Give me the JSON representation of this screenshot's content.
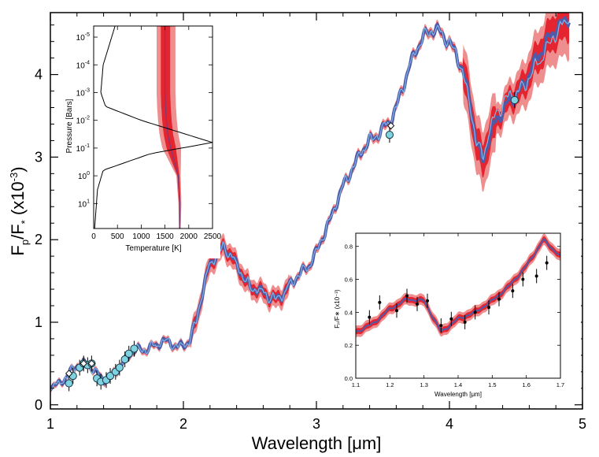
{
  "chart_data": [
    {
      "id": "main",
      "type": "line",
      "title": "",
      "xlabel": "Wavelength [μm]",
      "ylabel_main": "F",
      "ylabel_sub1": "p",
      "ylabel_mid": "/F",
      "ylabel_sub2": "*",
      "ylabel_units": " (x10",
      "ylabel_exp": "-3",
      "ylabel_close": ")",
      "xlim": [
        1,
        5
      ],
      "ylim": [
        -0.05,
        4.75
      ],
      "xticks": [
        1,
        2,
        3,
        4,
        5
      ],
      "yticks": [
        0,
        1,
        2,
        3,
        4
      ],
      "series": [
        {
          "name": "Model spectrum (median)",
          "x": [
            1.0,
            1.05,
            1.1,
            1.15,
            1.2,
            1.25,
            1.3,
            1.35,
            1.4,
            1.45,
            1.5,
            1.55,
            1.6,
            1.65,
            1.7,
            1.75,
            1.8,
            1.85,
            1.9,
            1.95,
            2.0,
            2.05,
            2.1,
            2.15,
            2.2,
            2.25,
            2.3,
            2.35,
            2.4,
            2.45,
            2.5,
            2.55,
            2.6,
            2.65,
            2.7,
            2.75,
            2.8,
            2.85,
            2.9,
            2.95,
            3.0,
            3.05,
            3.1,
            3.15,
            3.2,
            3.25,
            3.3,
            3.35,
            3.4,
            3.45,
            3.5,
            3.55,
            3.6,
            3.65,
            3.7,
            3.75,
            3.8,
            3.85,
            3.9,
            3.95,
            4.0,
            4.05,
            4.1,
            4.15,
            4.2,
            4.25,
            4.3,
            4.35,
            4.4,
            4.45,
            4.5,
            4.55,
            4.6,
            4.65,
            4.7,
            4.75,
            4.8,
            4.85,
            4.9
          ],
          "y": [
            0.22,
            0.24,
            0.3,
            0.4,
            0.48,
            0.5,
            0.47,
            0.38,
            0.3,
            0.34,
            0.42,
            0.52,
            0.62,
            0.68,
            0.65,
            0.7,
            0.72,
            0.78,
            0.75,
            0.7,
            0.72,
            0.78,
            1.05,
            1.4,
            1.72,
            1.8,
            1.92,
            1.82,
            1.7,
            1.55,
            1.42,
            1.4,
            1.36,
            1.3,
            1.28,
            1.34,
            1.45,
            1.55,
            1.62,
            1.7,
            1.85,
            2.05,
            2.22,
            2.45,
            2.65,
            2.8,
            2.95,
            3.1,
            3.2,
            3.25,
            3.35,
            3.42,
            3.6,
            3.85,
            4.1,
            4.3,
            4.45,
            4.52,
            4.55,
            4.48,
            4.38,
            4.25,
            4.05,
            3.7,
            3.2,
            2.95,
            3.25,
            3.45,
            3.55,
            3.7,
            3.75,
            3.85,
            4.0,
            4.18,
            4.3,
            4.45,
            4.55,
            4.62,
            4.7
          ]
        },
        {
          "name": "Observed eclipse depths",
          "x": [
            1.14,
            1.17,
            1.22,
            1.25,
            1.28,
            1.31,
            1.35,
            1.38,
            1.42,
            1.45,
            1.49,
            1.52,
            1.56,
            1.59,
            1.63,
            3.55,
            4.49
          ],
          "y": [
            0.26,
            0.35,
            0.45,
            0.5,
            0.48,
            0.5,
            0.32,
            0.28,
            0.3,
            0.35,
            0.4,
            0.45,
            0.55,
            0.62,
            0.68,
            3.27,
            3.69
          ]
        },
        {
          "name": "Binned model (diamonds)",
          "x": [
            1.14,
            1.25,
            1.31,
            3.56
          ],
          "y": [
            0.38,
            0.5,
            0.5,
            3.38
          ]
        }
      ]
    },
    {
      "id": "inset-pt-profile",
      "type": "line",
      "xlabel": "Temperature [K]",
      "ylabel": "Pressure [Bars]",
      "xlim": [
        0,
        2500
      ],
      "ylim_log10": [
        -5.4,
        1.9
      ],
      "xticks": [
        0,
        500,
        1000,
        1500,
        2000,
        2500
      ],
      "ytick_base": "10",
      "ytick_exponents": [
        "-5",
        "-4",
        "-3",
        "-2",
        "-1",
        "0",
        "1"
      ],
      "series": [
        {
          "name": "Temperature-pressure profile",
          "temperature": [
            1500,
            1500,
            1500,
            1510,
            1530,
            1560,
            1620,
            1700,
            1780,
            1810,
            1810
          ],
          "log10_pressure": [
            -5.4,
            -4.0,
            -3.0,
            -2.5,
            -2.0,
            -1.5,
            -1.0,
            -0.5,
            0.0,
            1.0,
            1.9
          ]
        },
        {
          "name": "Contribution function",
          "contribution_relative_temperature": [
            450,
            200,
            150,
            250,
            1000,
            2500,
            1200,
            200,
            80,
            20
          ],
          "log10_pressure": [
            -5.4,
            -4.0,
            -3.0,
            -2.5,
            -2.0,
            -1.2,
            -0.8,
            -0.2,
            0.5,
            1.9
          ]
        }
      ]
    },
    {
      "id": "inset-wfc3",
      "type": "line",
      "xlabel": "Wavelength [μm]",
      "ylabel": "Fₚ/F∗ (x10⁻³)",
      "xlim": [
        1.1,
        1.7
      ],
      "ylim": [
        0.0,
        0.88
      ],
      "xticks": [
        1.1,
        1.2,
        1.3,
        1.4,
        1.5,
        1.6,
        1.7
      ],
      "yticks": [
        0.0,
        0.2,
        0.4,
        0.6,
        0.8
      ],
      "series": [
        {
          "name": "Model (zoom)",
          "x": [
            1.1,
            1.15,
            1.2,
            1.25,
            1.3,
            1.35,
            1.4,
            1.45,
            1.5,
            1.55,
            1.6,
            1.65,
            1.7
          ],
          "y": [
            0.28,
            0.33,
            0.42,
            0.48,
            0.47,
            0.28,
            0.36,
            0.4,
            0.47,
            0.56,
            0.68,
            0.84,
            0.74
          ]
        },
        {
          "name": "Data (zoom)",
          "x": [
            1.14,
            1.17,
            1.22,
            1.25,
            1.28,
            1.31,
            1.35,
            1.38,
            1.42,
            1.45,
            1.49,
            1.52,
            1.56,
            1.59,
            1.63,
            1.66
          ],
          "y": [
            0.37,
            0.46,
            0.41,
            0.5,
            0.45,
            0.47,
            0.32,
            0.36,
            0.34,
            0.4,
            0.43,
            0.48,
            0.53,
            0.6,
            0.62,
            0.7
          ]
        }
      ]
    }
  ]
}
